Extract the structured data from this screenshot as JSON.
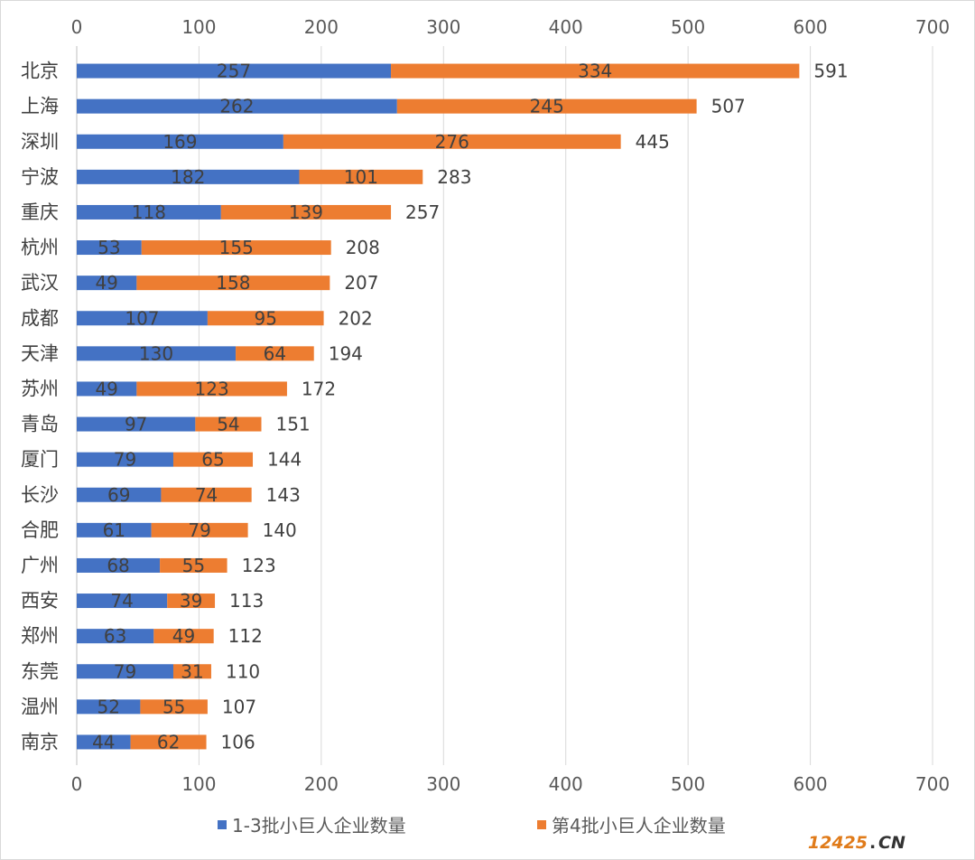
{
  "chart_data": {
    "type": "bar",
    "orientation": "horizontal",
    "stacked": true,
    "categories": [
      "北京",
      "上海",
      "深圳",
      "宁波",
      "重庆",
      "杭州",
      "武汉",
      "成都",
      "天津",
      "苏州",
      "青岛",
      "厦门",
      "长沙",
      "合肥",
      "广州",
      "西安",
      "郑州",
      "东莞",
      "温州",
      "南京"
    ],
    "series": [
      {
        "name": "1-3批小巨人企业数量",
        "color": "#4472c4",
        "values": [
          257,
          262,
          169,
          182,
          118,
          53,
          49,
          107,
          130,
          49,
          97,
          79,
          69,
          61,
          68,
          74,
          63,
          79,
          52,
          44
        ]
      },
      {
        "name": "第4批小巨人企业数量",
        "color": "#ed7d31",
        "values": [
          334,
          245,
          276,
          101,
          139,
          155,
          158,
          95,
          64,
          123,
          54,
          65,
          74,
          79,
          55,
          39,
          49,
          31,
          55,
          62
        ]
      }
    ],
    "totals": [
      591,
      507,
      445,
      283,
      257,
      208,
      207,
      202,
      194,
      172,
      151,
      144,
      143,
      140,
      123,
      113,
      112,
      110,
      107,
      106
    ],
    "xlim": [
      0,
      700
    ],
    "xticks": [
      0,
      100,
      200,
      300,
      400,
      500,
      600,
      700
    ],
    "axis_labels_top_and_bottom": true,
    "grid": true,
    "grid_color": "#d9d9d9",
    "legend_position": "bottom",
    "title": "",
    "xlabel": "",
    "ylabel": ""
  },
  "watermark": {
    "number": "12425",
    "dot": ".",
    "suffix": "CN"
  }
}
